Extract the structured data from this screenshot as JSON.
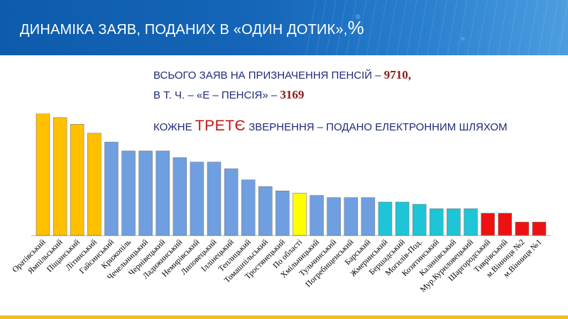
{
  "header": {
    "title": "ДИНАМІКА ЗАЯВ, ПОДАНИХ  В «ОДИН ДОТИК»,",
    "percent_sign": "%"
  },
  "info": {
    "line1_text": "ВСЬОГО ЗАЯВ НА ПРИЗНАЧЕННЯ ПЕНСІЙ –",
    "line1_value": "9710,",
    "line2_text": "В Т. Ч. – «Е – ПЕНСІЯ» –",
    "line2_value": "3169",
    "line3_prefix": "КОЖНЕ",
    "line3_highlight": "ТРЕТЄ",
    "line3_suffix": "ЗВЕРНЕННЯ – ПОДАНО ЕЛЕКТРОННИМ ШЛЯХОМ"
  },
  "colors": {
    "header_blue": "#1565b8",
    "gold": "#ffc000",
    "blue": "#6f9fe0",
    "yellow": "#ffff00",
    "teal": "#1ec5d6",
    "red": "#ee1111",
    "footer": "#f2c01e"
  },
  "chart_data": {
    "type": "bar",
    "categories": [
      "Оратівський",
      "Ямпільський",
      "Піщанський",
      "Літинський",
      "Гайсинський",
      "Крижопіль",
      "Чечельницький",
      "Чернівецький",
      "Ладижинський",
      "Немирівський",
      "Липовецький",
      "Іллінецький",
      "Теплицький",
      "Томашпільський",
      "Тростянецький",
      "По області",
      "Хмільницький",
      "Тульчинський",
      "Погребищенський",
      "Барський",
      "Жмеринський",
      "Бершадський",
      "Могилів-Под.",
      "Козятинський",
      "Калинівський",
      "Мур.Куриловецький",
      "Шаргородський",
      "Тиврівський",
      "м.Вінниця №2",
      "м.Вінниця №1"
    ],
    "values": [
      56,
      53,
      50,
      46,
      42,
      38,
      38,
      38,
      35,
      33,
      33,
      30,
      25,
      22,
      20,
      19,
      18,
      17,
      17,
      17,
      15,
      15,
      14,
      12,
      12,
      12,
      10,
      10,
      6,
      6
    ],
    "colors": [
      "gold",
      "gold",
      "gold",
      "gold",
      "blue",
      "blue",
      "blue",
      "blue",
      "blue",
      "blue",
      "blue",
      "blue",
      "blue",
      "blue",
      "blue",
      "yellow",
      "blue",
      "blue",
      "blue",
      "blue",
      "teal",
      "teal",
      "teal",
      "teal",
      "teal",
      "teal",
      "red",
      "red",
      "red",
      "red"
    ],
    "ylim": [
      0,
      60
    ]
  }
}
